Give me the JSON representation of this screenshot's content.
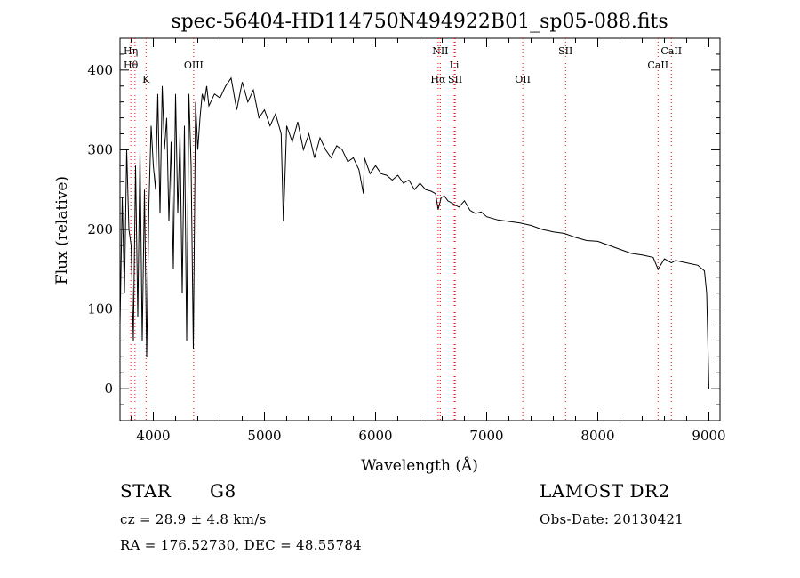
{
  "chart_data": {
    "type": "line",
    "title": "spec-56404-HD114750N494922B01_sp05-088.fits",
    "xlabel": "Wavelength (Å)",
    "ylabel": "Flux (relative)",
    "xlim": [
      3700,
      9100
    ],
    "ylim": [
      -40,
      440
    ],
    "xticks": [
      4000,
      5000,
      6000,
      7000,
      8000,
      9000
    ],
    "yticks": [
      0,
      100,
      200,
      300,
      400
    ],
    "grid": false,
    "line_color": "#000000",
    "marker_color": "#ff0000",
    "line_markers": [
      {
        "label": "Hη",
        "x": 3835
      },
      {
        "label": "Hθ",
        "x": 3797
      },
      {
        "label": "K",
        "x": 3934
      },
      {
        "label": "OIII",
        "x": 4363
      },
      {
        "label": "NII",
        "x": 6583
      },
      {
        "label": "Li",
        "x": 6708
      },
      {
        "label": "Hα",
        "x": 6563
      },
      {
        "label": "SII",
        "x": 6717
      },
      {
        "label": "OII",
        "x": 7325
      },
      {
        "label": "SII",
        "x": 7710
      },
      {
        "label": "CaII",
        "x": 8542
      },
      {
        "label": "CaII",
        "x": 8662
      }
    ],
    "series": [
      {
        "x": [
          3700,
          3720,
          3740,
          3760,
          3780,
          3800,
          3820,
          3840,
          3860,
          3880,
          3900,
          3920,
          3940,
          3960,
          3980,
          4000,
          4020,
          4040,
          4060,
          4080,
          4100,
          4120,
          4140,
          4160,
          4180,
          4200,
          4220,
          4240,
          4260,
          4280,
          4300,
          4320,
          4340,
          4360,
          4380,
          4400,
          4420,
          4440,
          4460,
          4480,
          4500,
          4550,
          4600,
          4650,
          4700,
          4750,
          4800,
          4850,
          4900,
          4950,
          5000,
          5050,
          5100,
          5150,
          5170,
          5183,
          5200,
          5250,
          5300,
          5350,
          5400,
          5450,
          5500,
          5550,
          5600,
          5650,
          5700,
          5750,
          5800,
          5850,
          5890,
          5900,
          5950,
          6000,
          6050,
          6100,
          6150,
          6200,
          6250,
          6300,
          6350,
          6400,
          6450,
          6500,
          6540,
          6563,
          6590,
          6620,
          6650,
          6700,
          6750,
          6800,
          6850,
          6900,
          6950,
          7000,
          7100,
          7200,
          7300,
          7400,
          7500,
          7600,
          7700,
          7800,
          7900,
          8000,
          8100,
          8200,
          8300,
          8400,
          8498,
          8542,
          8600,
          8662,
          8700,
          8800,
          8900,
          8960,
          8980,
          8990,
          9000
        ],
        "y": [
          80,
          240,
          120,
          300,
          200,
          180,
          60,
          280,
          90,
          300,
          60,
          250,
          40,
          230,
          330,
          280,
          250,
          370,
          220,
          380,
          300,
          340,
          210,
          310,
          150,
          370,
          220,
          320,
          120,
          330,
          60,
          370,
          280,
          50,
          360,
          300,
          340,
          370,
          360,
          380,
          355,
          370,
          365,
          380,
          390,
          350,
          385,
          360,
          375,
          340,
          350,
          330,
          345,
          320,
          210,
          260,
          330,
          310,
          335,
          300,
          320,
          290,
          315,
          300,
          290,
          305,
          300,
          285,
          290,
          275,
          245,
          290,
          270,
          280,
          270,
          268,
          262,
          268,
          258,
          262,
          250,
          258,
          250,
          248,
          245,
          225,
          240,
          242,
          236,
          232,
          228,
          236,
          224,
          220,
          222,
          216,
          212,
          210,
          208,
          205,
          200,
          197,
          195,
          190,
          186,
          185,
          180,
          175,
          170,
          168,
          165,
          150,
          163,
          158,
          161,
          158,
          155,
          148,
          120,
          60,
          0
        ]
      }
    ]
  },
  "info": {
    "object_type": "STAR",
    "spectral_class": "G8",
    "survey": "LAMOST DR2",
    "cz": "cz = 28.9 ± 4.8 km/s",
    "obs_date": "Obs-Date: 20130421",
    "coords": "RA = 176.52730, DEC =  48.55784"
  }
}
